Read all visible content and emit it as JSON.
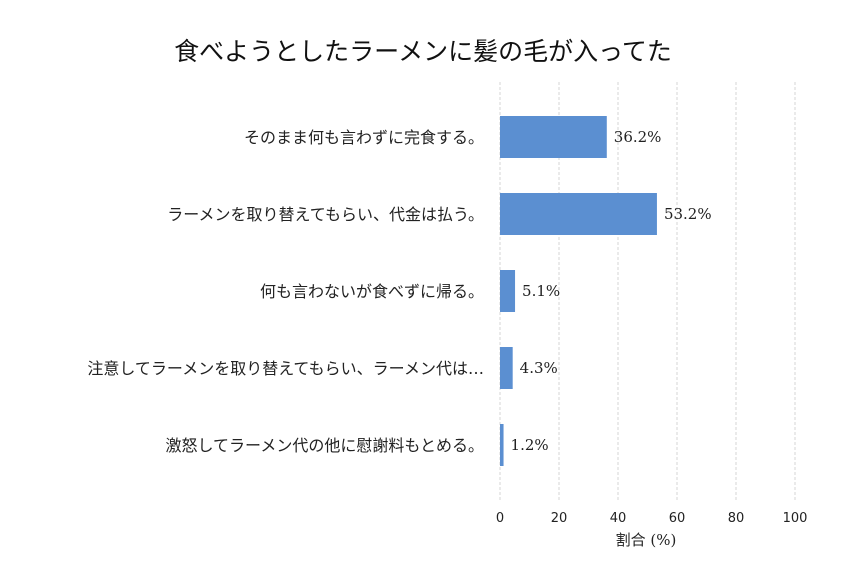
{
  "chart_data": {
    "type": "bar",
    "orientation": "horizontal",
    "title": "食べようとしたラーメンに髪の毛が入ってた",
    "xlabel": "割合 (%)",
    "ylabel": "",
    "xlim": [
      0,
      100
    ],
    "xticks": [
      0,
      20,
      40,
      60,
      80,
      100
    ],
    "grid": true,
    "bar_color": "#5b8fd1",
    "categories": [
      "そのまま何も言わずに完食する。",
      "ラーメンを取り替えてもらい、代金は払う。",
      "何も言わないが食べずに帰る。",
      "注意してラーメンを取り替えてもらい、ラーメン代は…",
      "激怒してラーメン代の他に慰謝料もとめる。"
    ],
    "values": [
      36.2,
      53.2,
      5.1,
      4.3,
      1.2
    ],
    "value_labels": [
      "36.2%",
      "53.2%",
      "5.1%",
      "4.3%",
      "1.2%"
    ]
  }
}
